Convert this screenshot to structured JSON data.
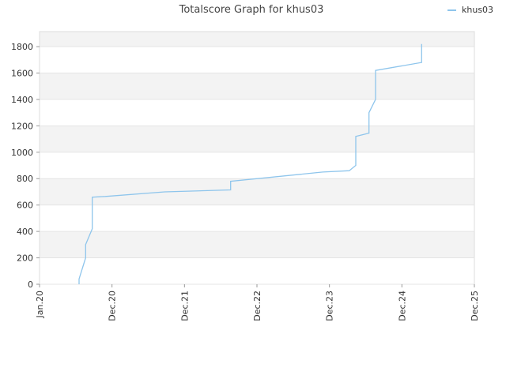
{
  "chart_data": {
    "type": "line",
    "title": "Totalscore Graph for khus03",
    "x": [
      "2020-07",
      "2020-07",
      "2020-08",
      "2020-08",
      "2020-09",
      "2020-09",
      "2020-09",
      "2020-09",
      "2020-11",
      "2021-09",
      "2022-08",
      "2022-08",
      "2023-11",
      "2024-04",
      "2024-05",
      "2024-05",
      "2024-07",
      "2024-07",
      "2024-08",
      "2024-08",
      "2024-08",
      "2025-04",
      "2025-04",
      "2025-04"
    ],
    "series": [
      {
        "name": "khus03",
        "color": "#8ec5ec",
        "values": [
          0,
          40,
          200,
          300,
          420,
          450,
          530,
          660,
          665,
          700,
          715,
          780,
          850,
          860,
          900,
          1120,
          1145,
          1300,
          1400,
          1570,
          1620,
          1680,
          1730,
          1820
        ]
      }
    ],
    "xlim": [
      "2020-01",
      "2025-12"
    ],
    "xticks": [
      {
        "value": "2020-01",
        "label": "Jan.20"
      },
      {
        "value": "2020-12",
        "label": "Dec.20"
      },
      {
        "value": "2021-12",
        "label": "Dec.21"
      },
      {
        "value": "2022-12",
        "label": "Dec.22"
      },
      {
        "value": "2023-12",
        "label": "Dec.23"
      },
      {
        "value": "2024-12",
        "label": "Dec.24"
      },
      {
        "value": "2025-12",
        "label": "Dec.25"
      }
    ],
    "ylim": [
      0,
      1914
    ],
    "yticks": [
      0,
      200,
      400,
      600,
      800,
      1000,
      1200,
      1400,
      1600,
      1800
    ],
    "grid": true,
    "legend": "top-right"
  }
}
